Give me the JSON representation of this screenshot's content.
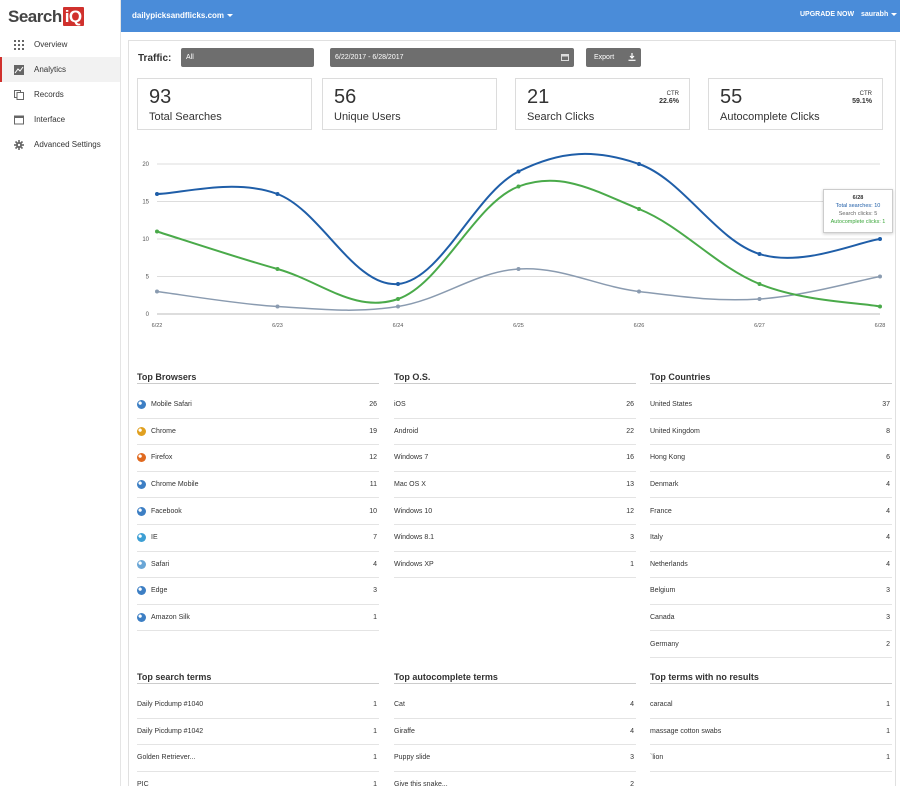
{
  "app": {
    "logo_text": "Search",
    "logo_badge": "iQ"
  },
  "sidebar": {
    "items": [
      {
        "label": "Overview",
        "icon": "grid-icon"
      },
      {
        "label": "Analytics",
        "icon": "chart-icon",
        "active": true
      },
      {
        "label": "Records",
        "icon": "copy-icon"
      },
      {
        "label": "Interface",
        "icon": "window-icon"
      },
      {
        "label": "Advanced Settings",
        "icon": "gear-icon"
      }
    ]
  },
  "topbar": {
    "site": "dailypicksandflicks.com",
    "upgrade": "UPGRADE NOW",
    "user": "saurabh"
  },
  "filters": {
    "traffic_label": "Traffic:",
    "traffic_value": "All",
    "date_range": "6/22/2017 - 6/28/2017",
    "export_label": "Export"
  },
  "stats": [
    {
      "value": "93",
      "label": "Total Searches"
    },
    {
      "value": "56",
      "label": "Unique Users"
    },
    {
      "value": "21",
      "label": "Search Clicks",
      "ctr_label": "CTR",
      "ctr_value": "22.6%"
    },
    {
      "value": "55",
      "label": "Autocomplete Clicks",
      "ctr_label": "CTR",
      "ctr_value": "59.1%"
    }
  ],
  "chart_data": {
    "type": "line",
    "x": [
      "6/22",
      "6/23",
      "6/24",
      "6/25",
      "6/26",
      "6/27",
      "6/28"
    ],
    "ylim": [
      0,
      20
    ],
    "yticks": [
      0,
      5,
      10,
      15,
      20
    ],
    "grid": true,
    "series": [
      {
        "key": "total",
        "values": [
          16,
          16,
          4,
          19,
          20,
          8,
          10
        ],
        "color": "#1f5ea8"
      },
      {
        "key": "autocomplete",
        "values": [
          11,
          6,
          2,
          17,
          14,
          4,
          1
        ],
        "color": "#4aaa4a"
      },
      {
        "key": "clicks",
        "values": [
          3,
          1,
          1,
          6,
          3,
          2,
          5
        ],
        "color": "#8a9bb0"
      }
    ],
    "tooltip": {
      "date": "6/28",
      "total": "Total searches: 10",
      "clicks": "Search clicks: 5",
      "autocomplete": "Autocomplete clicks: 1"
    }
  },
  "browsers": {
    "title": "Top Browsers",
    "rows": [
      {
        "label": "Mobile Safari",
        "count": "26",
        "color": "#3d7fc4"
      },
      {
        "label": "Chrome",
        "count": "19",
        "color": "#e0a020"
      },
      {
        "label": "Firefox",
        "count": "12",
        "color": "#e06a20"
      },
      {
        "label": "Chrome Mobile",
        "count": "11",
        "color": "#3d7fc4"
      },
      {
        "label": "Facebook",
        "count": "10",
        "color": "#3d7fc4"
      },
      {
        "label": "IE",
        "count": "7",
        "color": "#3d9fd4"
      },
      {
        "label": "Safari",
        "count": "4",
        "color": "#6aa6d6"
      },
      {
        "label": "Edge",
        "count": "3",
        "color": "#3d7fc4"
      },
      {
        "label": "Amazon Silk",
        "count": "1",
        "color": "#3d7fc4"
      }
    ]
  },
  "os": {
    "title": "Top O.S.",
    "rows": [
      {
        "label": "iOS",
        "count": "26"
      },
      {
        "label": "Android",
        "count": "22"
      },
      {
        "label": "Windows 7",
        "count": "16"
      },
      {
        "label": "Mac OS X",
        "count": "13"
      },
      {
        "label": "Windows 10",
        "count": "12"
      },
      {
        "label": "Windows 8.1",
        "count": "3"
      },
      {
        "label": "Windows XP",
        "count": "1"
      }
    ]
  },
  "countries": {
    "title": "Top Countries",
    "rows": [
      {
        "label": "United States",
        "count": "37"
      },
      {
        "label": "United Kingdom",
        "count": "8"
      },
      {
        "label": "Hong Kong",
        "count": "6"
      },
      {
        "label": "Denmark",
        "count": "4"
      },
      {
        "label": "France",
        "count": "4"
      },
      {
        "label": "Italy",
        "count": "4"
      },
      {
        "label": "Netherlands",
        "count": "4"
      },
      {
        "label": "Belgium",
        "count": "3"
      },
      {
        "label": "Canada",
        "count": "3"
      },
      {
        "label": "Germany",
        "count": "2"
      }
    ]
  },
  "search_terms": {
    "title": "Top search terms",
    "rows": [
      {
        "label": "Daily Picdump #1040",
        "count": "1"
      },
      {
        "label": "Daily Picdump #1042",
        "count": "1"
      },
      {
        "label": "Golden Retriever...",
        "count": "1"
      },
      {
        "label": "PIC",
        "count": "1"
      }
    ]
  },
  "autocomplete_terms": {
    "title": "Top autocomplete terms",
    "rows": [
      {
        "label": "Cat",
        "count": "4"
      },
      {
        "label": "Giraffe",
        "count": "4"
      },
      {
        "label": "Puppy slide",
        "count": "3"
      },
      {
        "label": "Give this snake...",
        "count": "2"
      }
    ]
  },
  "no_results_terms": {
    "title": "Top terms with no results",
    "rows": [
      {
        "label": "caracal",
        "count": "1"
      },
      {
        "label": "massage cotton swabs",
        "count": "1"
      },
      {
        "label": "`lion",
        "count": "1"
      }
    ]
  }
}
